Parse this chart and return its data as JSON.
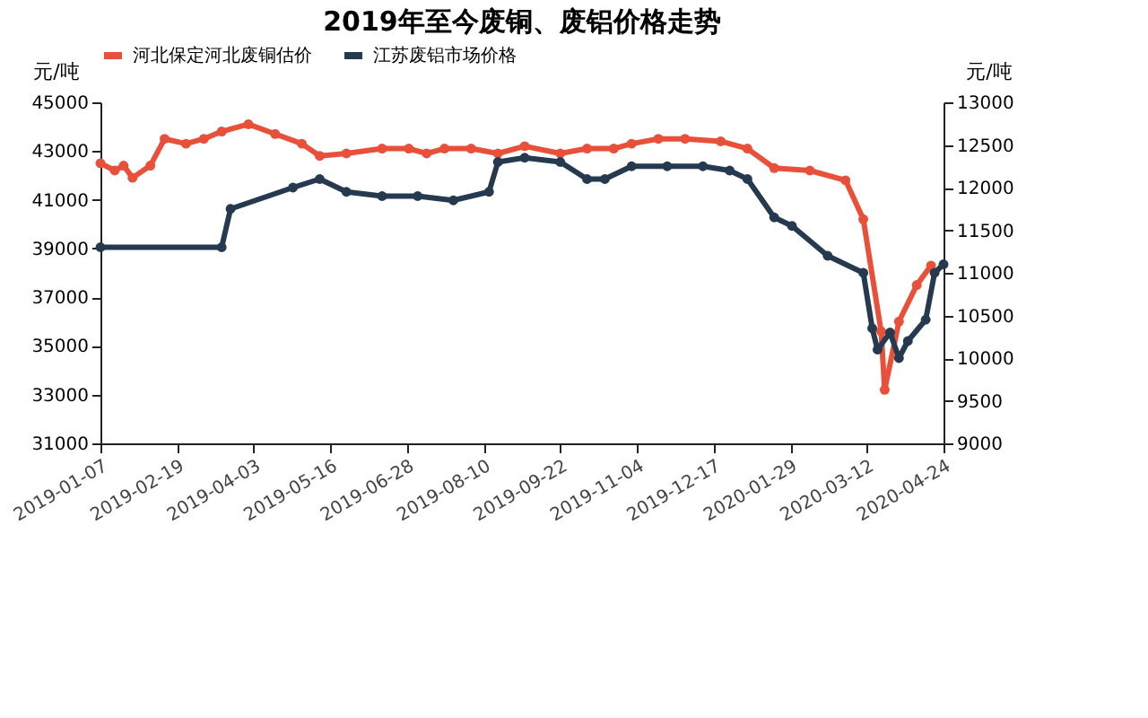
{
  "chart_data": {
    "type": "line",
    "title": "2019年至今废铜、废铝价格走势",
    "ylabel": "元/吨",
    "y2label": "元/吨",
    "xlim": [
      "2019-01-07",
      "2020-04-24"
    ],
    "xticks": [
      "2019-01-07",
      "2019-02-19",
      "2019-04-03",
      "2019-05-16",
      "2019-06-28",
      "2019-08-10",
      "2019-09-22",
      "2019-11-04",
      "2019-12-17",
      "2020-01-29",
      "2020-03-12",
      "2020-04-24"
    ],
    "ylim": [
      31000,
      45000
    ],
    "yticks": [
      31000,
      33000,
      35000,
      37000,
      39000,
      41000,
      43000,
      45000
    ],
    "y2lim": [
      9000,
      13000
    ],
    "y2ticks": [
      9000,
      9500,
      10000,
      10500,
      11000,
      11500,
      12000,
      12500,
      13000
    ],
    "grid": false,
    "legend": "top",
    "marker": "circle",
    "line_style": "solid",
    "series": [
      {
        "name": "河北保定河北废铜估价",
        "color": "#e8503a",
        "x": [
          "2019-01-07",
          "2019-01-15",
          "2019-01-20",
          "2019-01-25",
          "2019-02-04",
          "2019-02-12",
          "2019-02-24",
          "2019-03-06",
          "2019-03-16",
          "2019-03-31",
          "2019-04-15",
          "2019-04-30",
          "2019-05-10",
          "2019-05-25",
          "2019-06-14",
          "2019-06-29",
          "2019-07-09",
          "2019-07-19",
          "2019-08-03",
          "2019-08-18",
          "2019-09-02",
          "2019-09-22",
          "2019-10-07",
          "2019-10-22",
          "2019-11-01",
          "2019-11-16",
          "2019-12-01",
          "2019-12-21",
          "2020-01-05",
          "2020-01-20",
          "2020-02-09",
          "2020-02-29",
          "2020-03-10",
          "2020-03-20",
          "2020-03-22",
          "2020-03-30",
          "2020-04-09",
          "2020-04-17"
        ],
        "values": [
          42500,
          42200,
          42400,
          41900,
          42400,
          43500,
          43300,
          43500,
          43800,
          44100,
          43700,
          43300,
          42800,
          42900,
          43100,
          43100,
          42900,
          43100,
          43100,
          42900,
          43200,
          42900,
          43100,
          43100,
          43300,
          43500,
          43500,
          43400,
          43100,
          42300,
          42200,
          41800,
          40200,
          35600,
          33200,
          36000,
          37500,
          38300
        ]
      },
      {
        "name": "江苏废铝市场价格",
        "color": "#263a4f",
        "axis": "y2",
        "x": [
          "2019-01-07",
          "2019-03-16",
          "2019-03-21",
          "2019-04-25",
          "2019-05-10",
          "2019-05-25",
          "2019-06-14",
          "2019-07-04",
          "2019-07-24",
          "2019-08-13",
          "2019-08-18",
          "2019-09-02",
          "2019-09-22",
          "2019-10-07",
          "2019-10-17",
          "2019-11-01",
          "2019-11-21",
          "2019-12-11",
          "2019-12-26",
          "2020-01-05",
          "2020-01-20",
          "2020-01-30",
          "2020-02-19",
          "2020-03-10",
          "2020-03-15",
          "2020-03-18",
          "2020-03-25",
          "2020-03-30",
          "2020-04-04",
          "2020-04-14",
          "2020-04-19",
          "2020-04-24"
        ],
        "values": [
          11300,
          11300,
          11750,
          12000,
          12100,
          11950,
          11900,
          11900,
          11850,
          11950,
          12300,
          12350,
          12300,
          12100,
          12100,
          12250,
          12250,
          12250,
          12200,
          12100,
          11650,
          11550,
          11200,
          11000,
          10350,
          10100,
          10300,
          10000,
          10200,
          10450,
          11000,
          11100
        ]
      }
    ]
  }
}
